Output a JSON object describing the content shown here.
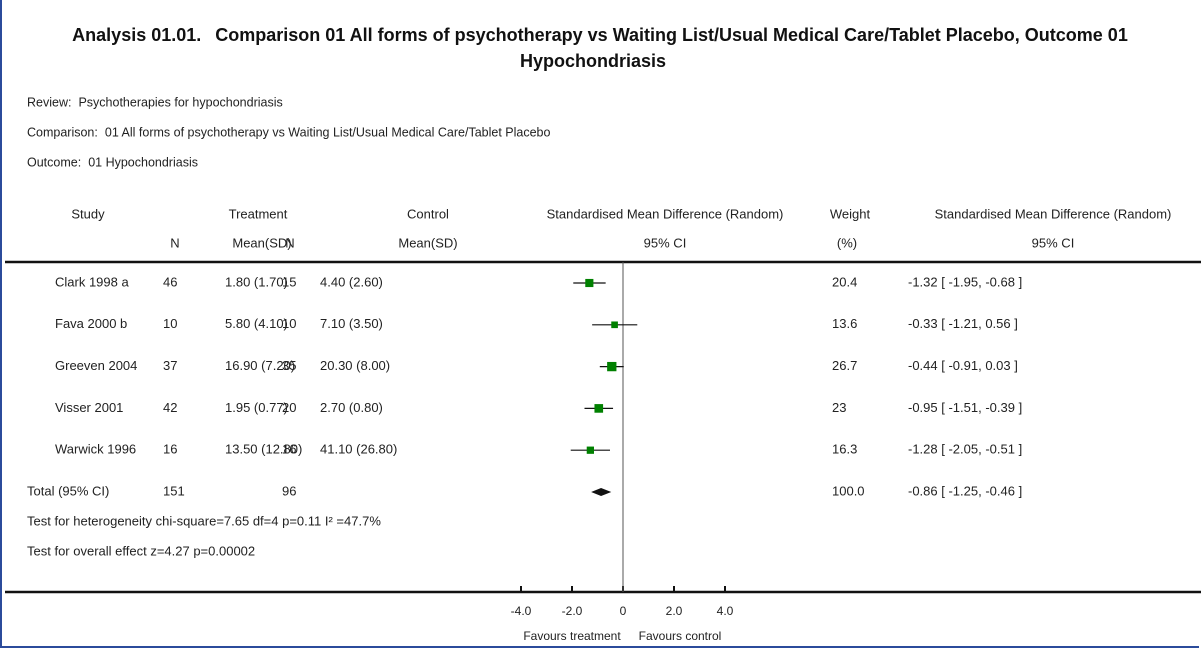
{
  "chart_data": {
    "type": "forest",
    "analysis": "Analysis 01.01.",
    "title": "Comparison 01 All forms of psychotherapy vs Waiting List/Usual Medical Care/Tablet Placebo, Outcome 01 Hypochondriasis",
    "meta": [
      {
        "label": "Review:",
        "value": "Psychotherapies for hypochondriasis"
      },
      {
        "label": "Comparison:",
        "value": "01 All forms of psychotherapy vs Waiting List/Usual Medical Care/Tablet Placebo"
      },
      {
        "label": "Outcome:",
        "value": "01 Hypochondriasis"
      }
    ],
    "headers": {
      "study": "Study",
      "treatment": "Treatment",
      "control": "Control",
      "plot": "Standardised Mean Difference (Random)",
      "weight": "Weight",
      "effect": "Standardised Mean Difference (Random)"
    },
    "subheaders": {
      "n1": "N",
      "mean1": "Mean(SD)",
      "n2": "N",
      "mean2": "Mean(SD)",
      "plot": "95% CI",
      "weight": "(%)",
      "effect": "95% CI"
    },
    "studies": [
      {
        "name": "Clark 1998 a",
        "n1": 46,
        "mean_sd1": "1.80 (1.70)",
        "n2": 15,
        "mean_sd2": "4.40 (2.60)",
        "weight": 20.4,
        "smd": -1.32,
        "ci_low": -1.95,
        "ci_high": -0.68,
        "ci_label": "-1.32 [ -1.95, -0.68 ]"
      },
      {
        "name": "Fava 2000 b",
        "n1": 10,
        "mean_sd1": "5.80 (4.10)",
        "n2": 10,
        "mean_sd2": "7.10 (3.50)",
        "weight": 13.6,
        "smd": -0.33,
        "ci_low": -1.21,
        "ci_high": 0.56,
        "ci_label": "-0.33 [ -1.21, 0.56 ]"
      },
      {
        "name": "Greeven 2004",
        "n1": 37,
        "mean_sd1": "16.90 (7.20)",
        "n2": 35,
        "mean_sd2": "20.30 (8.00)",
        "weight": 26.7,
        "smd": -0.44,
        "ci_low": -0.91,
        "ci_high": 0.03,
        "ci_label": "-0.44 [ -0.91, 0.03 ]"
      },
      {
        "name": "Visser 2001",
        "n1": 42,
        "mean_sd1": "1.95 (0.77)",
        "n2": 20,
        "mean_sd2": "2.70 (0.80)",
        "weight": 23.0,
        "smd": -0.95,
        "ci_low": -1.51,
        "ci_high": -0.39,
        "ci_label": "-0.95 [ -1.51, -0.39 ]"
      },
      {
        "name": "Warwick 1996",
        "n1": 16,
        "mean_sd1": "13.50 (12.80)",
        "n2": 16,
        "mean_sd2": "41.10 (26.80)",
        "weight": 16.3,
        "smd": -1.28,
        "ci_low": -2.05,
        "ci_high": -0.51,
        "ci_label": "-1.28 [ -2.05, -0.51 ]"
      }
    ],
    "total": {
      "name": "Total (95% CI)",
      "n1": 151,
      "n2": 96,
      "weight": "100.0",
      "smd": -0.86,
      "ci_low": -1.25,
      "ci_high": -0.46,
      "ci_label": "-0.86 [ -1.25, -0.46 ]"
    },
    "notes": [
      "Test for heterogeneity chi-square=7.65 df=4 p=0.11 I² =47.7%",
      "Test for overall effect z=4.27  p=0.00002"
    ],
    "xlim": [
      -4,
      4
    ],
    "xticks": [
      {
        "value": -4,
        "label": "-4.0"
      },
      {
        "value": -2,
        "label": "-2.0"
      },
      0,
      {
        "value": 2,
        "label": "2.0"
      },
      {
        "value": 4,
        "label": "4.0"
      }
    ],
    "favours": [
      "Favours treatment",
      "Favours control"
    ],
    "marker_color": "#008000"
  }
}
